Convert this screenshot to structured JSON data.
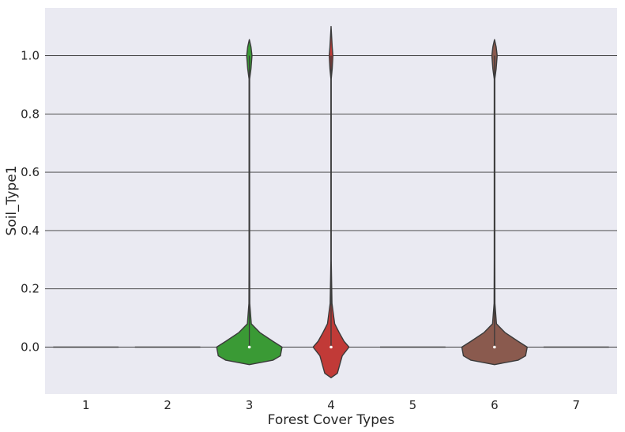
{
  "chart_data": {
    "type": "violin",
    "xlabel": "Forest Cover Types",
    "ylabel": "Soil_Type1",
    "categories": [
      "1",
      "2",
      "3",
      "4",
      "5",
      "6",
      "7"
    ],
    "y_ticks": [
      "0.0",
      "0.2",
      "0.4",
      "0.6",
      "0.8",
      "1.0"
    ],
    "ylim": [
      -0.16,
      1.16
    ],
    "grid": true,
    "background": "#EAEAF2",
    "series": [
      {
        "category": "1",
        "color": "#1f77b4",
        "min": 0,
        "max": 0,
        "median": 0,
        "spread": "flat"
      },
      {
        "category": "2",
        "color": "#ff7f0e",
        "min": 0,
        "max": 0,
        "median": 0,
        "spread": "flat"
      },
      {
        "category": "3",
        "color": "#3A9A35",
        "min": 0,
        "max": 1,
        "median": 0,
        "spread": "bimodal"
      },
      {
        "category": "4",
        "color": "#C13A37",
        "min": 0,
        "max": 1,
        "median": 0,
        "spread": "bimodal"
      },
      {
        "category": "5",
        "color": "#9467bd",
        "min": 0,
        "max": 0,
        "median": 0,
        "spread": "flat"
      },
      {
        "category": "6",
        "color": "#8A5A4E",
        "min": 0,
        "max": 1,
        "median": 0,
        "spread": "bimodal"
      },
      {
        "category": "7",
        "color": "#e377c2",
        "min": 0,
        "max": 0,
        "median": 0,
        "spread": "flat"
      }
    ]
  }
}
